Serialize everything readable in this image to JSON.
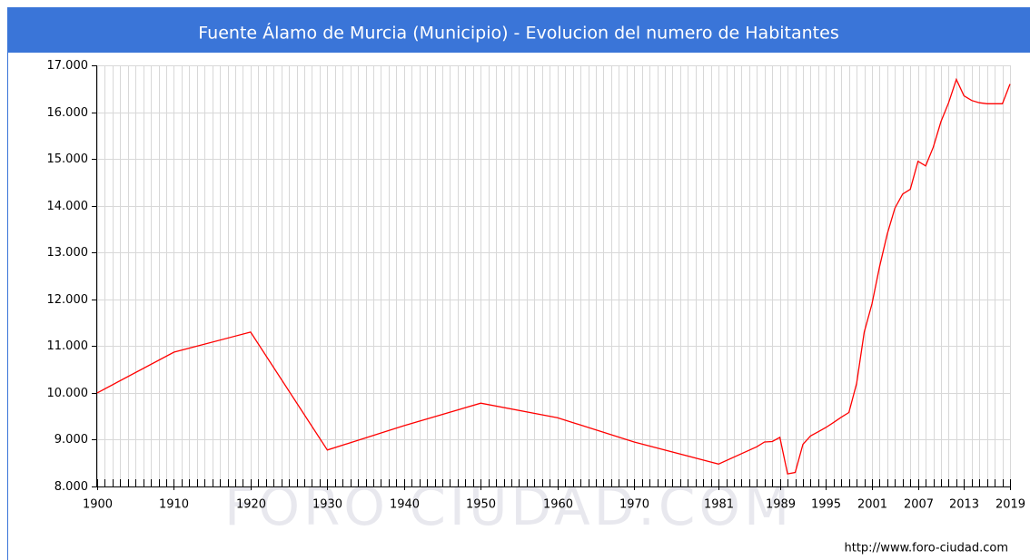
{
  "chart_data": {
    "type": "line",
    "title": "Fuente Álamo de Murcia (Municipio) - Evolucion del numero de Habitantes",
    "watermark": "FORO CIUDAD.COM",
    "source": "http://www.foro-ciudad.com",
    "x": [
      1900,
      1910,
      1920,
      1930,
      1940,
      1950,
      1960,
      1970,
      1981,
      1986,
      1987,
      1988,
      1989,
      1990,
      1991,
      1992,
      1993,
      1994,
      1995,
      1996,
      1997,
      1998,
      1999,
      2000,
      2001,
      2002,
      2003,
      2004,
      2005,
      2006,
      2007,
      2008,
      2009,
      2010,
      2011,
      2012,
      2013,
      2014,
      2015,
      2016,
      2017,
      2018,
      2019
    ],
    "series": [
      {
        "name": "Habitantes",
        "color": "#ff0000",
        "values": [
          10000,
          10870,
          11300,
          8780,
          9300,
          9780,
          9470,
          8950,
          8480,
          8850,
          8950,
          8960,
          9050,
          8270,
          8300,
          8900,
          9080,
          9170,
          9260,
          9370,
          9480,
          9580,
          10200,
          11300,
          11900,
          12700,
          13400,
          13950,
          14250,
          14350,
          14950,
          14850,
          15250,
          15800,
          16200,
          16700,
          16350,
          16250,
          16200,
          16180,
          16180,
          16180,
          16600
        ]
      }
    ],
    "xlim": [
      1900,
      2019
    ],
    "xticks": [
      1900,
      1910,
      1920,
      1930,
      1940,
      1950,
      1960,
      1970,
      1981,
      1989,
      1995,
      2001,
      2007,
      2013,
      2019
    ],
    "ylim": [
      8000,
      17000
    ],
    "yticks": [
      {
        "value": 8000,
        "label": "8.000"
      },
      {
        "value": 9000,
        "label": "9.000"
      },
      {
        "value": 10000,
        "label": "10.000"
      },
      {
        "value": 11000,
        "label": "11.000"
      },
      {
        "value": 12000,
        "label": "12.000"
      },
      {
        "value": 13000,
        "label": "13.000"
      },
      {
        "value": 14000,
        "label": "14.000"
      },
      {
        "value": 15000,
        "label": "15.000"
      },
      {
        "value": 16000,
        "label": "16.000"
      },
      {
        "value": 17000,
        "label": "17.000"
      }
    ],
    "grid": true
  }
}
